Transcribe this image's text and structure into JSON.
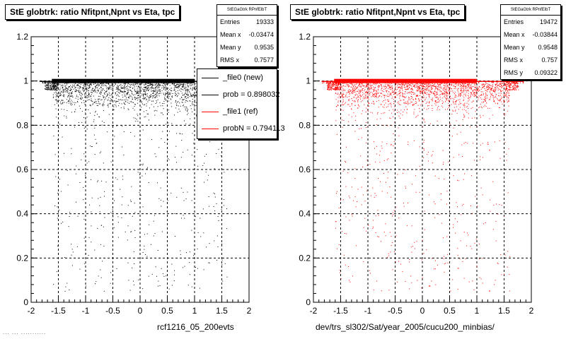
{
  "panels": [
    {
      "id": "left",
      "title": "StE globtrk: ratio Nfitpnt,Npnt vs Eta, tpc",
      "color": "#000000",
      "stats": {
        "name": "StEGaGtrk RPnfElbT",
        "rows": [
          {
            "label": "Entries",
            "value": "19333"
          },
          {
            "label": "Mean x",
            "value": "-0.03474"
          },
          {
            "label": "Mean y",
            "value": "0.9535"
          },
          {
            "label": "RMS x",
            "value": "0.7577"
          }
        ]
      },
      "legend": [
        {
          "label": "_file0 (new)",
          "color": "#000000"
        },
        {
          "label": "prob = 0.898032",
          "color": "#000000"
        },
        {
          "label": "_file1 (ref)",
          "color": "#ff0000"
        },
        {
          "label": "probN = 0.794113",
          "color": "#ff0000"
        }
      ],
      "xtitle": "rcf1216_05_200evts"
    },
    {
      "id": "right",
      "title": "StE globtrk: ratio Nfitpnt,Npnt vs Eta, tpc",
      "color": "#ff0000",
      "stats": {
        "name": "StEGaGtrk RPnfElbT",
        "rows": [
          {
            "label": "Entries",
            "value": "19472"
          },
          {
            "label": "Mean x",
            "value": "-0.03844"
          },
          {
            "label": "Mean y",
            "value": "0.9548"
          },
          {
            "label": "RMS x",
            "value": "0.757"
          },
          {
            "label": "RMS y",
            "value": "0.09322"
          }
        ]
      },
      "legend": [],
      "xtitle": "dev/trs_sl302/Sat/year_2005/cucu200_minbias/"
    }
  ],
  "footer": "... ... ...........",
  "chart_data": [
    {
      "type": "scatter",
      "title": "StE globtrk: ratio Nfitpnt,Npnt vs Eta, tpc",
      "xlabel": "rcf1216_05_200evts",
      "ylabel": "",
      "xlim": [
        -2,
        2
      ],
      "ylim": [
        0,
        1.2
      ],
      "x_ticks": [
        "-2",
        "-1.5",
        "-1",
        "-0.5",
        "0",
        "0.5",
        "1",
        "1.5",
        "2"
      ],
      "y_ticks": [
        "0",
        "0.2",
        "0.4",
        "0.6",
        "0.8",
        "1",
        "1.2"
      ],
      "grid": true,
      "series": [
        {
          "name": "_file0 (new)",
          "entries": 19333,
          "mean_x": -0.03474,
          "mean_y": 0.9535,
          "rms_x": 0.7577,
          "band_y": 1.0,
          "x_range": [
            -1.85,
            1.85
          ]
        }
      ]
    },
    {
      "type": "scatter",
      "title": "StE globtrk: ratio Nfitpnt,Npnt vs Eta, tpc",
      "xlabel": "dev/trs_sl302/Sat/year_2005/cucu200_minbias/",
      "ylabel": "",
      "xlim": [
        -2,
        2
      ],
      "ylim": [
        0,
        1.2
      ],
      "x_ticks": [
        "-2",
        "-1.5",
        "-1",
        "-0.5",
        "0",
        "0.5",
        "1",
        "1.5",
        "2"
      ],
      "y_ticks": [
        "0",
        "0.2",
        "0.4",
        "0.6",
        "0.8",
        "1",
        "1.2"
      ],
      "grid": true,
      "series": [
        {
          "name": "_file1 (ref)",
          "entries": 19472,
          "mean_x": -0.03844,
          "mean_y": 0.9548,
          "rms_x": 0.757,
          "rms_y": 0.09322,
          "band_y": 1.0,
          "x_range": [
            -1.85,
            1.85
          ]
        }
      ]
    }
  ]
}
